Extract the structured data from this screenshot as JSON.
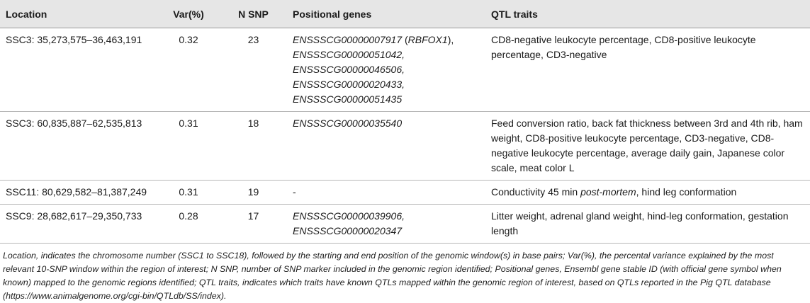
{
  "headers": {
    "location": "Location",
    "var": "Var(%)",
    "nsnp": "N SNP",
    "genes": "Positional genes",
    "traits": "QTL traits"
  },
  "rows": [
    {
      "location": "SSC3: 35,273,575–36,463,191",
      "var": "0.32",
      "nsnp": "23",
      "genes": [
        {
          "id": "ENSSSCG00000007917",
          "open": " (",
          "symbol": "RBFOX1",
          "close": "),"
        },
        {
          "id": "ENSSSCG00000051042,"
        },
        {
          "id": "ENSSSCG00000046506,"
        },
        {
          "id": "ENSSSCG00000020433,"
        },
        {
          "id": "ENSSSCG00000051435"
        }
      ],
      "traits": "CD8-negative leukocyte percentage, CD8-positive leukocyte percentage, CD3-negative"
    },
    {
      "location": "SSC3: 60,835,887–62,535,813",
      "var": "0.31",
      "nsnp": "18",
      "genes": [
        {
          "id": "ENSSSCG00000035540"
        }
      ],
      "traits": "Feed conversion ratio, back fat thickness between 3rd and 4th rib, ham weight, CD8-positive leukocyte percentage, CD3-negative, CD8-negative leukocyte percentage, average daily gain, Japanese color scale, meat color L"
    },
    {
      "location": "SSC11: 80,629,582–81,387,249",
      "var": "0.31",
      "nsnp": "19",
      "genes_plain": "-",
      "traits_pre": "Conductivity 45 min ",
      "traits_it": "post-mortem",
      "traits_post": ", hind leg conformation"
    },
    {
      "location": "SSC9: 28,682,617–29,350,733",
      "var": "0.28",
      "nsnp": "17",
      "genes": [
        {
          "id": "ENSSSCG00000039906,"
        },
        {
          "id": "ENSSSCG00000020347"
        }
      ],
      "traits": "Litter weight, adrenal gland weight, hind-leg conformation, gestation length"
    }
  ],
  "footnote": "Location, indicates the chromosome number (SSC1 to SSC18), followed by the starting and end position of the genomic window(s) in base pairs; Var(%), the percental variance explained by the most relevant 10-SNP window within the region of interest; N SNP, number of SNP marker included in the genomic region identified; Positional genes, Ensembl gene stable ID (with official gene symbol when known) mapped to the genomic regions identified; QTL traits, indicates which traits have known QTLs mapped within the genomic region of interest, based on QTLs reported in the Pig QTL database (https://www.animalgenome.org/cgi-bin/QTLdb/SS/index)."
}
